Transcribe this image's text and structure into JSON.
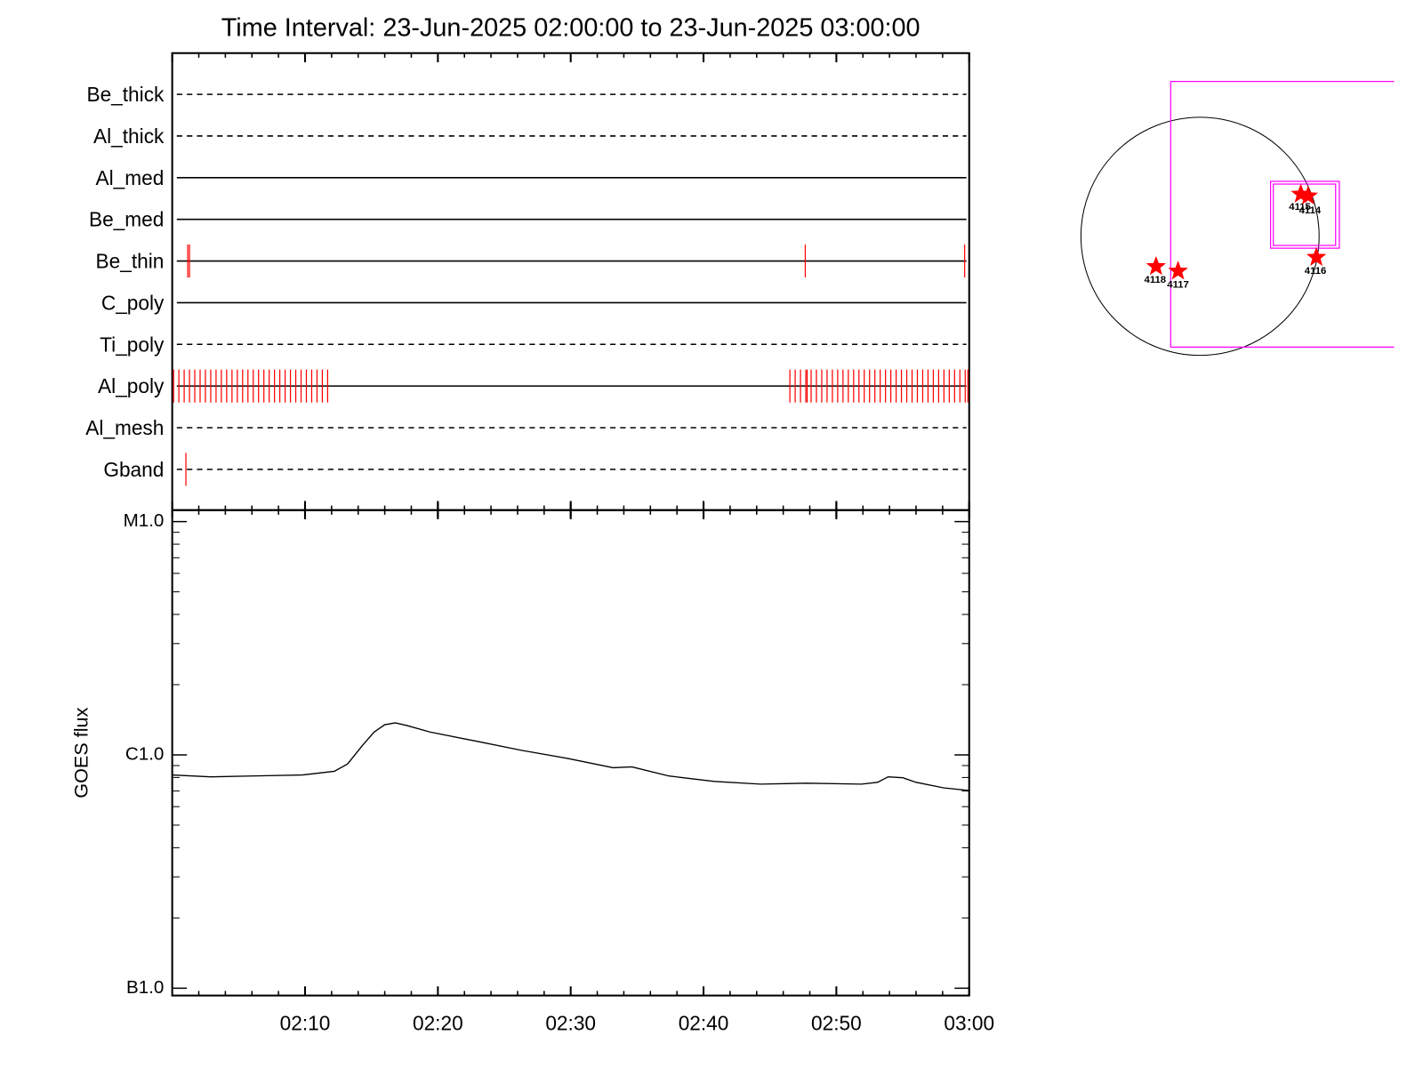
{
  "chart_data": [
    {
      "type": "timeline",
      "title": "Time Interval: 23-Jun-2025 02:00:00 to 23-Jun-2025 03:00:00",
      "xlim": [
        0,
        60
      ],
      "xticks": [
        0,
        10,
        20,
        30,
        40,
        50,
        60
      ],
      "xminorticks": [
        2,
        4,
        6,
        8,
        12,
        14,
        16,
        18,
        22,
        24,
        26,
        28,
        32,
        34,
        36,
        38,
        42,
        44,
        46,
        48,
        52,
        54,
        56,
        58
      ],
      "color": "#ff0000",
      "channels": [
        {
          "name": "Be_thick",
          "dashed": true,
          "times": []
        },
        {
          "name": "Al_thick",
          "dashed": true,
          "times": []
        },
        {
          "name": "Al_med",
          "dashed": false,
          "times": []
        },
        {
          "name": "Be_med",
          "dashed": false,
          "times": []
        },
        {
          "name": "Be_thin",
          "dashed": false,
          "times": [
            1.17,
            1.3,
            47.66,
            59.66
          ]
        },
        {
          "name": "C_poly",
          "dashed": false,
          "times": []
        },
        {
          "name": "Ti_poly",
          "dashed": true,
          "times": []
        },
        {
          "name": "Al_poly",
          "dashed": false,
          "times": [
            0.1,
            0.5,
            0.9,
            1.3,
            1.7,
            2.1,
            2.5,
            2.9,
            3.3,
            3.7,
            4.1,
            4.5,
            4.9,
            5.3,
            5.7,
            6.1,
            6.5,
            6.9,
            7.3,
            7.7,
            8.1,
            8.5,
            8.9,
            9.3,
            9.7,
            10.1,
            10.5,
            10.9,
            11.3,
            11.7,
            46.5,
            46.9,
            47.3,
            47.7,
            47.8,
            48.1,
            48.5,
            48.9,
            49.3,
            49.7,
            50.1,
            50.5,
            50.9,
            51.3,
            51.7,
            52.1,
            52.5,
            52.9,
            53.3,
            53.7,
            54.1,
            54.5,
            54.9,
            55.3,
            55.7,
            56.1,
            56.5,
            56.9,
            57.3,
            57.7,
            58.1,
            58.5,
            58.9,
            59.3,
            59.7,
            59.9
          ]
        },
        {
          "name": "Al_mesh",
          "dashed": true,
          "times": []
        },
        {
          "name": "Gband",
          "dashed": true,
          "times": [
            1.03
          ]
        }
      ]
    },
    {
      "type": "line",
      "ylabel": "GOES flux",
      "log_scale": true,
      "color": "#000000",
      "x": [
        0,
        2.9,
        6.3,
        9.8,
        12.2,
        13.2,
        14.3,
        15.2,
        16.0,
        16.8,
        17.7,
        19.4,
        22.9,
        26.3,
        29.8,
        33.2,
        34.6,
        37.4,
        40.8,
        44.3,
        47.7,
        51.9,
        53.1,
        53.9,
        55.0,
        56.0,
        58.1,
        60
      ],
      "values": [
        8.2e-07,
        8.05e-07,
        8.13e-07,
        8.2e-07,
        8.5e-07,
        9.14e-07,
        1.094e-06,
        1.253e-06,
        1.347e-06,
        1.371e-06,
        1.335e-06,
        1.253e-06,
        1.145e-06,
        1.046e-06,
        9.65e-07,
        8.81e-07,
        8.89e-07,
        8.12e-07,
        7.7e-07,
        7.49e-07,
        7.56e-07,
        7.49e-07,
        7.63e-07,
        8.05e-07,
        7.98e-07,
        7.63e-07,
        7.22e-07,
        7.03e-07
      ],
      "xlim": [
        0,
        60
      ],
      "xticks": [
        {
          "value": 10,
          "label": "02:10"
        },
        {
          "value": 20,
          "label": "02:20"
        },
        {
          "value": 30,
          "label": "02:30"
        },
        {
          "value": 40,
          "label": "02:40"
        },
        {
          "value": 50,
          "label": "02:50"
        },
        {
          "value": 60,
          "label": "03:00"
        }
      ],
      "xminorticks": [
        2,
        4,
        6,
        8,
        12,
        14,
        16,
        18,
        22,
        24,
        26,
        28,
        32,
        34,
        36,
        38,
        42,
        44,
        46,
        48,
        52,
        54,
        56,
        58
      ],
      "ylim": [
        9.3e-08,
        1.12e-05
      ],
      "yticks": [
        {
          "value": 1e-07,
          "label": "B1.0"
        },
        {
          "value": 1e-06,
          "label": "C1.0"
        },
        {
          "value": 1e-05,
          "label": "M1.0"
        }
      ],
      "yminorticks": [
        2e-07,
        3e-07,
        4e-07,
        5e-07,
        6e-07,
        7e-07,
        8e-07,
        9e-07,
        2e-06,
        3e-06,
        4e-06,
        5e-06,
        6e-06,
        7e-06,
        8e-06,
        9e-06
      ]
    },
    {
      "type": "map",
      "regions": [
        "4115",
        "4114",
        "4116",
        "4118",
        "4117"
      ]
    }
  ]
}
